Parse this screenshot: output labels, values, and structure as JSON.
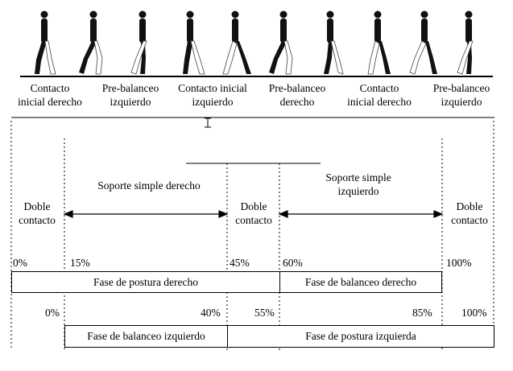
{
  "phases_top": [
    {
      "line1": "Contacto",
      "line2": "inicial derecho"
    },
    {
      "line1": "Pre-balanceo",
      "line2": "izquierdo"
    },
    {
      "line1": "Contacto inicial",
      "line2": "izquierdo"
    },
    {
      "line1": "Pre-balanceo",
      "line2": "derecho"
    },
    {
      "line1": "Contacto",
      "line2": "inicial derecho"
    },
    {
      "line1": "Pre-balanceo",
      "line2": "izquierdo"
    }
  ],
  "support": {
    "double1": {
      "line1": "Doble",
      "line2": "contacto"
    },
    "single_right": "Soporte simple derecho",
    "double2": {
      "line1": "Doble",
      "line2": "contacto"
    },
    "single_left": {
      "line1": "Soporte simple",
      "line2": "izquierdo"
    },
    "double3": {
      "line1": "Doble",
      "line2": "contacto"
    }
  },
  "percent_row1": [
    "0%",
    "15%",
    "45%",
    "60%",
    "100%"
  ],
  "bar1": {
    "stance_right": "Fase de postura derecho",
    "swing_right": "Fase de balanceo derecho"
  },
  "percent_row2": [
    "0%",
    "40%",
    "55%",
    "85%",
    "100%"
  ],
  "bar2": {
    "swing_left": "Fase de balanceo izquierdo",
    "stance_left": "Fase de postura izquierda"
  },
  "icons": {
    "walker": "walking-person-icon"
  }
}
